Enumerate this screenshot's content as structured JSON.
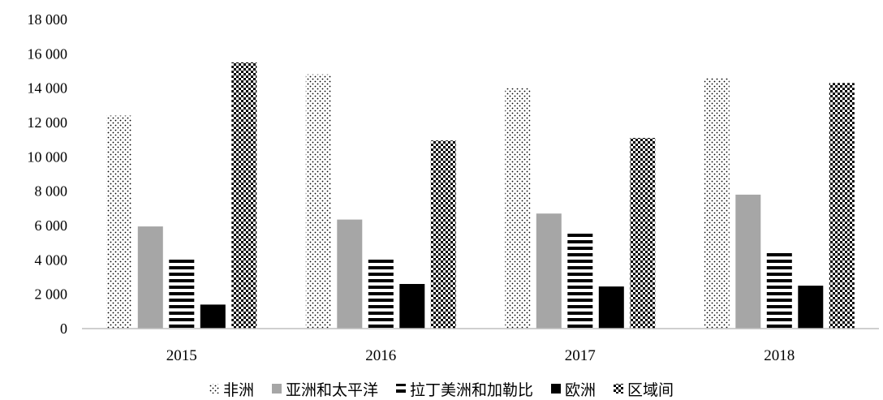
{
  "chart_data": {
    "type": "bar",
    "categories": [
      "2015",
      "2016",
      "2017",
      "2018"
    ],
    "series": [
      {
        "name": "非洲",
        "pattern": "dots",
        "values": [
          12400,
          14800,
          14000,
          14600
        ]
      },
      {
        "name": "亚洲和太平洋",
        "pattern": "gray",
        "color": "#a6a6a6",
        "values": [
          5950,
          6350,
          6700,
          7800
        ]
      },
      {
        "name": "拉丁美洲和加勒比",
        "pattern": "hstripes",
        "values": [
          4050,
          4100,
          5700,
          4500
        ]
      },
      {
        "name": "欧洲",
        "pattern": "black",
        "color": "#000000",
        "values": [
          1400,
          2600,
          2450,
          2500
        ]
      },
      {
        "name": "区域间",
        "pattern": "checker",
        "values": [
          15500,
          10950,
          11100,
          14300
        ]
      }
    ],
    "y_ticks": [
      "0",
      "2 000",
      "4 000",
      "6 000",
      "8 000",
      "10 000",
      "12 000",
      "14 000",
      "16 000",
      "18 000"
    ],
    "ylim": [
      0,
      18000
    ],
    "legend_position": "bottom",
    "grid": false
  }
}
